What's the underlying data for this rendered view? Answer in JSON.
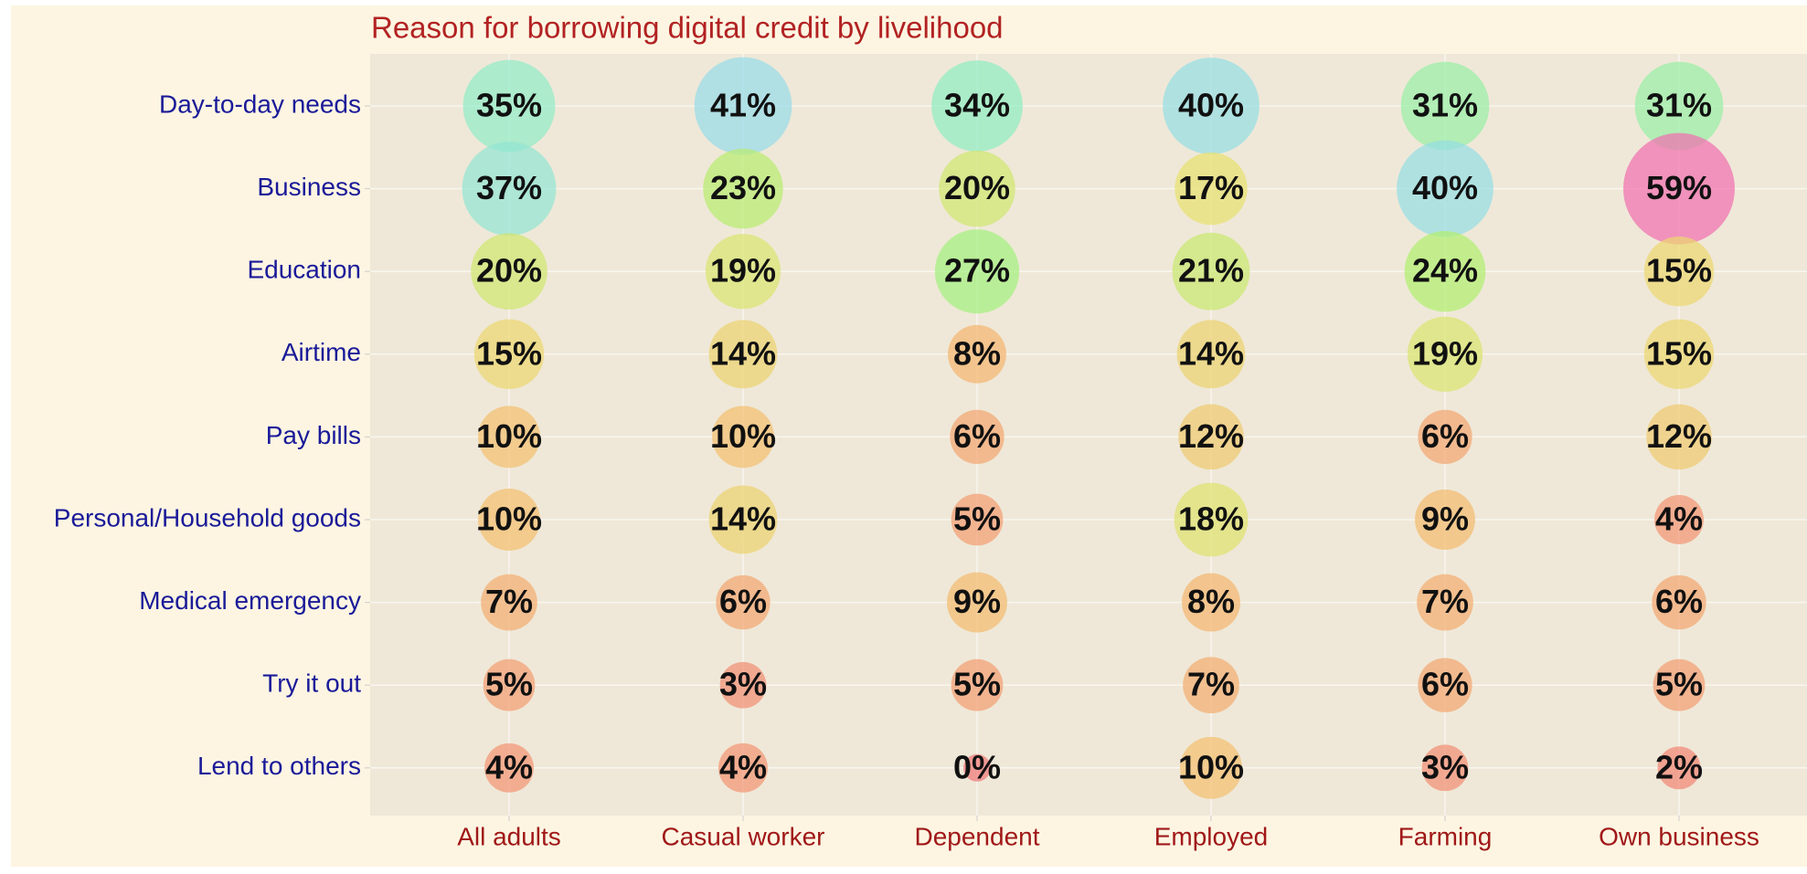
{
  "chart_data": {
    "type": "bubble",
    "title": "Reason for borrowing digital credit by livelihood",
    "categories": [
      "All adults",
      "Casual worker",
      "Dependent",
      "Employed",
      "Farming",
      "Own business"
    ],
    "y_categories": [
      "Day-to-day needs",
      "Business",
      "Education",
      "Airtime",
      "Pay bills",
      "Personal/Household goods",
      "Medical emergency",
      "Try it out",
      "Lend to others"
    ],
    "values": [
      [
        35,
        41,
        34,
        40,
        31,
        31
      ],
      [
        37,
        23,
        20,
        17,
        40,
        59
      ],
      [
        20,
        19,
        27,
        21,
        24,
        15
      ],
      [
        15,
        14,
        8,
        14,
        19,
        15
      ],
      [
        10,
        10,
        6,
        12,
        6,
        12
      ],
      [
        10,
        14,
        5,
        18,
        9,
        4
      ],
      [
        7,
        6,
        9,
        8,
        7,
        6
      ],
      [
        5,
        3,
        5,
        7,
        6,
        5
      ],
      [
        4,
        4,
        0,
        10,
        3,
        2
      ]
    ],
    "value_labels": [
      [
        "35%",
        "41%",
        "34%",
        "40%",
        "31%",
        "31%"
      ],
      [
        "37%",
        "23%",
        "20%",
        "17%",
        "40%",
        "59%"
      ],
      [
        "20%",
        "19%",
        "27%",
        "21%",
        "24%",
        "15%"
      ],
      [
        "15%",
        "14%",
        "8%",
        "14%",
        "19%",
        "15%"
      ],
      [
        "10%",
        "10%",
        "6%",
        "12%",
        "6%",
        "12%"
      ],
      [
        "10%",
        "14%",
        "5%",
        "18%",
        "9%",
        "4%"
      ],
      [
        "7%",
        "6%",
        "9%",
        "8%",
        "7%",
        "6%"
      ],
      [
        "5%",
        "3%",
        "5%",
        "7%",
        "6%",
        "5%"
      ],
      [
        "4%",
        "4%",
        "0%",
        "10%",
        "3%",
        "2%"
      ]
    ],
    "colorscale": [
      "#f07878",
      "#f4b870",
      "#e8e070",
      "#a8f070",
      "#90eec0",
      "#98d8f0",
      "#8898ee",
      "#f070b0"
    ],
    "grid": true
  }
}
